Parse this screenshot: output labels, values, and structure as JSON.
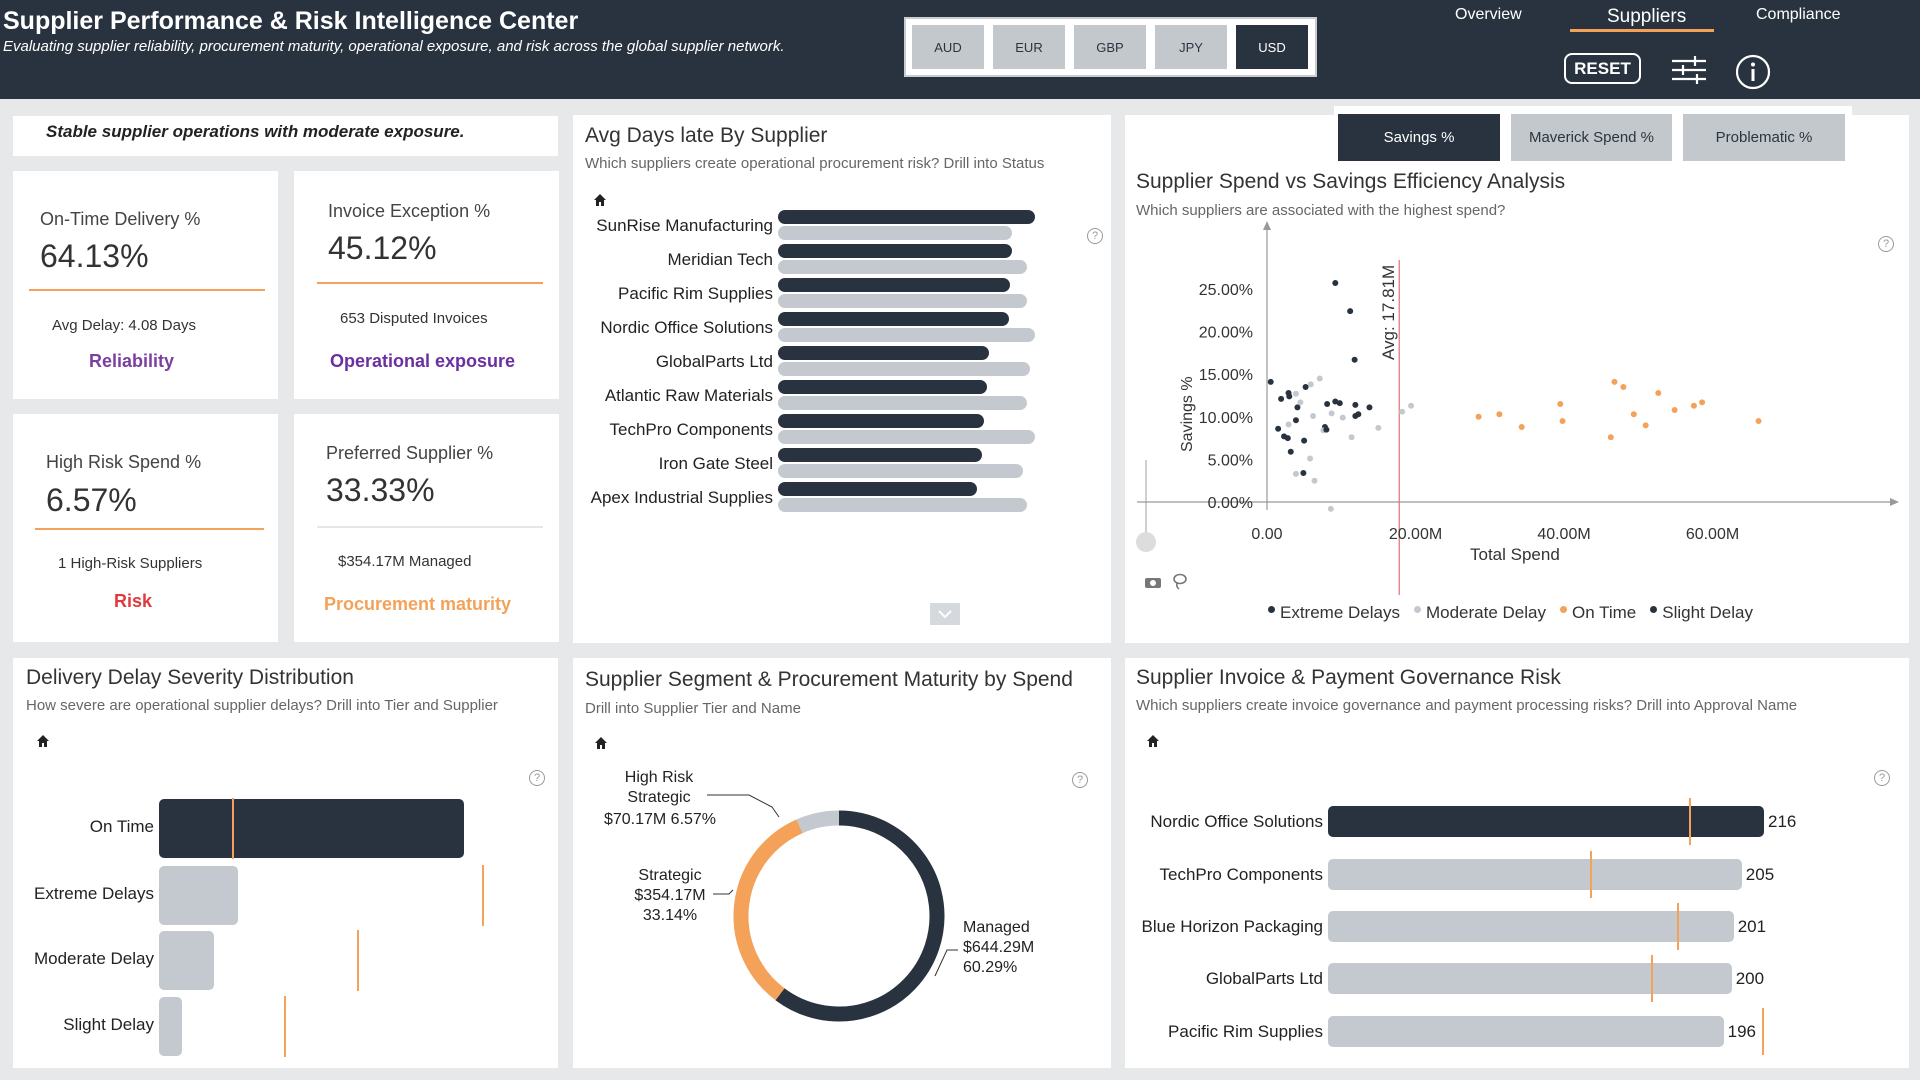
{
  "header": {
    "title": "Supplier Performance & Risk Intelligence Center",
    "subtitle": "Evaluating supplier reliability, procurement maturity, operational exposure, and risk across the global supplier network.",
    "currencies": [
      "AUD",
      "EUR",
      "GBP",
      "JPY",
      "USD"
    ],
    "active_currency": "USD",
    "nav": [
      "Overview",
      "Suppliers",
      "Compliance"
    ],
    "active_nav": "Suppliers",
    "reset_label": "RESET"
  },
  "banner": "Stable supplier operations with moderate exposure.",
  "kpis": {
    "on_time": {
      "title": "On-Time Delivery %",
      "value": "64.13%",
      "sub": "Avg Delay: 4.08 Days",
      "tag": "Reliability",
      "tag_color": "#7b3fa0"
    },
    "invoice": {
      "title": "Invoice Exception %",
      "value": "45.12%",
      "sub": "653 Disputed Invoices",
      "tag": "Operational exposure",
      "tag_color": "#6a2fa0"
    },
    "high_risk": {
      "title": "High Risk Spend %",
      "value": "6.57%",
      "sub": "1 High-Risk Suppliers",
      "tag": "Risk",
      "tag_color": "#e03a3e"
    },
    "preferred": {
      "title": "Preferred Supplier %",
      "value": "33.33%",
      "sub": "$354.17M Managed",
      "tag": "Procurement maturity",
      "tag_color": "#f4a259"
    }
  },
  "days_late": {
    "title": "Avg Days late By Supplier",
    "subtitle": "Which suppliers create operational procurement risk? Drill into Status",
    "suppliers": [
      "SunRise Manufacturing",
      "Meridian Tech",
      "Pacific Rim Supplies",
      "Nordic Office Solutions",
      "GlobalParts Ltd",
      "Atlantic Raw Materials",
      "TechPro Components",
      "Iron Gate Steel",
      "Apex Industrial Supplies"
    ],
    "dark": [
      1.0,
      0.91,
      0.904,
      0.9,
      0.82,
      0.815,
      0.8,
      0.795,
      0.775
    ],
    "light": [
      0.91,
      0.97,
      0.97,
      1.0,
      0.98,
      0.97,
      1.0,
      0.955,
      0.97
    ]
  },
  "scatter": {
    "toggles": [
      "Savings %",
      "Maverick Spend %",
      "Problematic %"
    ],
    "active_toggle": "Savings %",
    "title": "Supplier Spend vs Savings Efficiency Analysis",
    "subtitle": "Which suppliers are associated with the highest spend?",
    "avg_label": "Avg: 17.81M",
    "ylabel": "Savings %",
    "xlabel": "Total Spend",
    "yticks": [
      "25.00%",
      "20.00%",
      "15.00%",
      "10.00%",
      "5.00%",
      "0.00%"
    ],
    "xticks": [
      "0.00",
      "20.00M",
      "40.00M",
      "60.00M"
    ],
    "legend": [
      {
        "name": "Extreme Delays",
        "color": "#28333f"
      },
      {
        "name": "Moderate Delay",
        "color": "#c3c9cf"
      },
      {
        "name": "On Time",
        "color": "#f4a259"
      },
      {
        "name": "Slight Delay",
        "color": "#28333f"
      }
    ]
  },
  "chart_data": [
    {
      "type": "bar",
      "title": "Avg Days late By Supplier",
      "categories": [
        "SunRise Manufacturing",
        "Meridian Tech",
        "Pacific Rim Supplies",
        "Nordic Office Solutions",
        "GlobalParts Ltd",
        "Atlantic Raw Materials",
        "TechPro Components",
        "Iron Gate Steel",
        "Apex Industrial Supplies"
      ],
      "series": [
        {
          "values": [
            1.0,
            0.91,
            0.904,
            0.9,
            0.82,
            0.815,
            0.8,
            0.795,
            0.775
          ]
        },
        {
          "values": [
            0.91,
            0.97,
            0.97,
            1.0,
            0.98,
            0.97,
            1.0,
            0.955,
            0.97
          ]
        }
      ]
    },
    {
      "type": "scatter",
      "title": "Supplier Spend vs Savings Efficiency Analysis",
      "xlabel": "Total Spend",
      "ylabel": "Savings %",
      "xlim": [
        0,
        70
      ],
      "ylim": [
        0,
        25
      ],
      "series": [
        {
          "name": "Extreme Delays",
          "color": "#28333f",
          "points": [
            [
              9.2,
              25.7
            ],
            [
              11.2,
              22.4
            ],
            [
              11.8,
              16.7
            ],
            [
              0.5,
              14.1
            ],
            [
              1.9,
              12.1
            ],
            [
              3.0,
              12.4
            ],
            [
              5.2,
              13.5
            ],
            [
              4.1,
              11.1
            ],
            [
              3.9,
              9.6
            ],
            [
              7.8,
              8.8
            ],
            [
              2.3,
              7.7
            ],
            [
              3.2,
              5.9
            ],
            [
              4.9,
              3.4
            ],
            [
              9.2,
              11.8
            ],
            [
              9.8,
              11.6
            ],
            [
              11.9,
              10.1
            ],
            [
              8.1,
              11.5
            ],
            [
              13.8,
              11.1
            ]
          ]
        },
        {
          "name": "Moderate Delay",
          "color": "#c3c9cf",
          "points": [
            [
              3.9,
              12.7
            ],
            [
              5.9,
              13.8
            ],
            [
              7.1,
              14.5
            ],
            [
              4.5,
              11.7
            ],
            [
              6.2,
              10.1
            ],
            [
              8.7,
              10.4
            ],
            [
              10.2,
              9.9
            ],
            [
              2.9,
              9.1
            ],
            [
              7.6,
              8.4
            ],
            [
              5.8,
              5.1
            ],
            [
              3.9,
              3.3
            ],
            [
              6.4,
              2.5
            ],
            [
              8.6,
              -0.8
            ],
            [
              11.4,
              7.6
            ],
            [
              15.0,
              8.7
            ],
            [
              18.2,
              10.6
            ],
            [
              19.4,
              11.3
            ]
          ]
        },
        {
          "name": "On Time",
          "color": "#f4a259",
          "points": [
            [
              28.5,
              10.0
            ],
            [
              31.3,
              10.3
            ],
            [
              34.3,
              8.8
            ],
            [
              39.5,
              11.5
            ],
            [
              39.8,
              9.5
            ],
            [
              46.3,
              7.6
            ],
            [
              46.8,
              14.1
            ],
            [
              48.0,
              13.5
            ],
            [
              49.4,
              10.3
            ],
            [
              51.0,
              9.0
            ],
            [
              52.7,
              12.8
            ],
            [
              54.9,
              10.8
            ],
            [
              57.5,
              11.3
            ],
            [
              58.6,
              11.7
            ],
            [
              66.2,
              9.5
            ]
          ]
        },
        {
          "name": "Slight Delay",
          "color": "#28333f",
          "points": [
            [
              2.9,
              12.8
            ],
            [
              5.0,
              7.2
            ],
            [
              8.0,
              8.5
            ],
            [
              2.8,
              7.5
            ],
            [
              1.5,
              8.6
            ],
            [
              12.3,
              10.3
            ],
            [
              11.9,
              11.4
            ]
          ]
        }
      ]
    },
    {
      "type": "bar",
      "title": "Delivery Delay Severity Distribution",
      "categories": [
        "On Time",
        "Extreme Delays",
        "Moderate Delay",
        "Slight Delay"
      ],
      "values": [
        1.0,
        0.26,
        0.18,
        0.075
      ],
      "targets": [
        0.24,
        1.06,
        0.65,
        0.41
      ]
    },
    {
      "type": "pie",
      "title": "Supplier Segment & Procurement Maturity by Spend",
      "categories": [
        "Managed",
        "Strategic",
        "High Risk Strategic"
      ],
      "values": [
        60.29,
        33.14,
        6.57
      ],
      "labels": [
        "$644.29M",
        "$354.17M",
        "$70.17M"
      ]
    },
    {
      "type": "bar",
      "title": "Supplier Invoice & Payment Governance Risk",
      "categories": [
        "Nordic Office Solutions",
        "TechPro Components",
        "Blue Horizon Packaging",
        "GlobalParts Ltd",
        "Pacific Rim Supplies"
      ],
      "values": [
        216,
        205,
        201,
        200,
        196
      ],
      "targets": [
        179,
        130,
        173,
        160,
        215
      ]
    }
  ],
  "severity": {
    "title": "Delivery Delay Severity Distribution",
    "subtitle": "How severe are operational supplier delays? Drill into  Tier and Supplier",
    "categories": [
      "On Time",
      "Extreme Delays",
      "Moderate Delay",
      "Slight Delay"
    ]
  },
  "segment": {
    "title": "Supplier Segment & Procurement Maturity by Spend",
    "subtitle": "Drill into Supplier Tier and Name",
    "labels": {
      "hrs_1": "High Risk",
      "hrs_2": "Strategic",
      "hrs_3": "$70.17M 6.57%",
      "str_1": "Strategic",
      "str_2": "$354.17M",
      "str_3": "33.14%",
      "man_1": "Managed",
      "man_2": "$644.29M",
      "man_3": "60.29%"
    }
  },
  "invoice_risk": {
    "title": "Supplier Invoice & Payment Governance Risk",
    "subtitle": "Which suppliers create invoice governance and payment processing risks? Drill into Approval Name",
    "suppliers": [
      "Nordic Office Solutions",
      "TechPro Components",
      "Blue Horizon Packaging",
      "GlobalParts Ltd",
      "Pacific Rim Supplies"
    ],
    "values": [
      "216",
      "205",
      "201",
      "200",
      "196"
    ]
  },
  "colors": {
    "dark": "#28333f",
    "light": "#c3c9cf",
    "accent": "#f4a259",
    "avg_line": "#e07a7a"
  }
}
